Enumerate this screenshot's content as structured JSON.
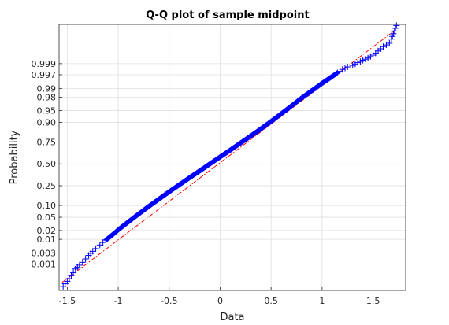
{
  "chart_data": {
    "type": "scatter",
    "title": "Q-Q plot  of sample midpoint",
    "xlabel": "Data",
    "ylabel": "Probability",
    "xlim": [
      -1.58,
      1.82
    ],
    "y_scale": "normal-probability",
    "grid": true,
    "legend": "none",
    "x_ticks": [
      {
        "value": -1.5,
        "label": "-1.5"
      },
      {
        "value": -1,
        "label": "-1"
      },
      {
        "value": -0.5,
        "label": "-0.5"
      },
      {
        "value": 0,
        "label": "0"
      },
      {
        "value": 0.5,
        "label": "0.5"
      },
      {
        "value": 1,
        "label": "1"
      },
      {
        "value": 1.5,
        "label": "1.5"
      }
    ],
    "y_ticks": [
      {
        "value": 0.001,
        "label": "0.001"
      },
      {
        "value": 0.003,
        "label": "0.003"
      },
      {
        "value": 0.01,
        "label": "0.01"
      },
      {
        "value": 0.02,
        "label": "0.02"
      },
      {
        "value": 0.05,
        "label": "0.05"
      },
      {
        "value": 0.1,
        "label": "0.10"
      },
      {
        "value": 0.25,
        "label": "0.25"
      },
      {
        "value": 0.5,
        "label": "0.50"
      },
      {
        "value": 0.75,
        "label": "0.75"
      },
      {
        "value": 0.9,
        "label": "0.90"
      },
      {
        "value": 0.95,
        "label": "0.95"
      },
      {
        "value": 0.98,
        "label": "0.98"
      },
      {
        "value": 0.99,
        "label": "0.99"
      },
      {
        "value": 0.997,
        "label": "0.997"
      },
      {
        "value": 0.999,
        "label": "0.999"
      }
    ],
    "series": [
      {
        "marker": "+",
        "color": "#0000ff",
        "points": [
          [
            -1.54,
            8e-05
          ],
          [
            -1.48,
            0.0002
          ],
          [
            -1.44,
            0.0004
          ],
          [
            -1.42,
            0.0006
          ],
          [
            -1.38,
            0.0009
          ],
          [
            -1.35,
            0.0012
          ],
          [
            -1.32,
            0.0017
          ],
          [
            -1.29,
            0.0024
          ],
          [
            -1.25,
            0.0035
          ],
          [
            -1.22,
            0.0045
          ],
          [
            -1.18,
            0.0062
          ],
          [
            -1.12,
            0.0095
          ],
          [
            -1.05,
            0.015
          ],
          [
            -1.0,
            0.021
          ],
          [
            -0.9,
            0.037
          ],
          [
            -0.8,
            0.061
          ],
          [
            -0.7,
            0.095
          ],
          [
            -0.6,
            0.139
          ],
          [
            -0.5,
            0.195
          ],
          [
            -0.4,
            0.26
          ],
          [
            -0.3,
            0.335
          ],
          [
            -0.2,
            0.415
          ],
          [
            -0.1,
            0.5
          ],
          [
            0.0,
            0.585
          ],
          [
            0.1,
            0.665
          ],
          [
            0.2,
            0.74
          ],
          [
            0.3,
            0.805
          ],
          [
            0.4,
            0.86
          ],
          [
            0.5,
            0.905
          ],
          [
            0.6,
            0.939
          ],
          [
            0.7,
            0.963
          ],
          [
            0.8,
            0.979
          ],
          [
            0.9,
            0.988
          ],
          [
            1.0,
            0.9935
          ],
          [
            1.05,
            0.9952
          ],
          [
            1.1,
            0.9965
          ],
          [
            1.15,
            0.9975
          ],
          [
            1.2,
            0.9982
          ],
          [
            1.25,
            0.9986
          ],
          [
            1.3,
            0.9988
          ],
          [
            1.35,
            0.9991
          ],
          [
            1.4,
            0.9993
          ],
          [
            1.45,
            0.99945
          ],
          [
            1.5,
            0.9996
          ],
          [
            1.55,
            0.99975
          ],
          [
            1.6,
            0.99985
          ],
          [
            1.66,
            0.9999
          ],
          [
            1.68,
            0.99994
          ],
          [
            1.73,
            0.99999
          ]
        ]
      }
    ],
    "reference_line": {
      "style": "dash-dot",
      "color": "#ff0000",
      "points": [
        [
          -1.55,
          0.00013
        ],
        [
          1.71,
          0.99998
        ]
      ]
    },
    "colors": {
      "markers": "#0000ff",
      "reference_line": "#ff0000",
      "grid": "#dfdfdf",
      "axes": "#262626"
    }
  }
}
